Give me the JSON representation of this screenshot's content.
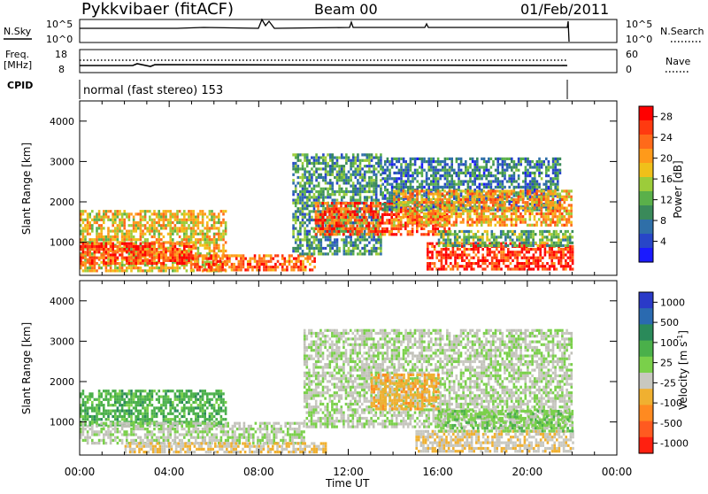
{
  "header": {
    "site": "Pykkvibaer (fitACF)",
    "beam": "Beam 00",
    "date": "01/Feb/2011"
  },
  "noise_panel": {
    "left_label": "N.Sky",
    "right_label": "N.Search",
    "left_ticks": [
      "10^5",
      "10^0"
    ],
    "right_ticks": [
      "10^5",
      "10^0"
    ]
  },
  "freq_panel": {
    "left_label_1": "Freq.",
    "left_label_2": "[MHz]",
    "right_label": "Nave",
    "left_ticks": [
      "18",
      "8"
    ],
    "right_ticks": [
      "60",
      "0"
    ]
  },
  "cpid": {
    "label": "CPID",
    "text": "normal (fast stereo) 153"
  },
  "colors": {
    "power_scale": [
      "#1a1aff",
      "#2846c8",
      "#2f6fa8",
      "#3a8a5a",
      "#5ab04a",
      "#9ccc3a",
      "#f0c01a",
      "#ff9a1a",
      "#ff6a1a",
      "#ff3a10",
      "#ff0000"
    ],
    "velocity_scale": [
      "#2a3ac8",
      "#2a6ab0",
      "#2a8a5a",
      "#4ab04a",
      "#7ad04a",
      "#c8c8c0",
      "#f0b030",
      "#ff8a20",
      "#ff5a20",
      "#ff2010"
    ],
    "ground_scatter": "#c0c0b8"
  },
  "chart_data": [
    {
      "type": "heatmap",
      "title": "",
      "xlabel": "",
      "ylabel": "Slant Range [km]",
      "x_tick_labels": [
        "00:00",
        "04:00",
        "08:00",
        "12:00",
        "16:00",
        "20:00",
        "00:00"
      ],
      "x_range_hours": [
        0,
        24
      ],
      "y_tick_labels": [
        "1000",
        "2000",
        "3000",
        "4000"
      ],
      "y_range_km": [
        180,
        4500
      ],
      "colorbar_label": "Power [dB]",
      "colorbar_ticks": [
        "4",
        "8",
        "12",
        "16",
        "20",
        "24",
        "28"
      ],
      "colorbar_range": [
        0,
        30
      ],
      "regions": [
        {
          "t0": 0.0,
          "t1": 6.5,
          "r0": 300,
          "r1": 1800,
          "level": 18
        },
        {
          "t0": 0.0,
          "t1": 5.0,
          "r0": 500,
          "r1": 1000,
          "level": 26
        },
        {
          "t0": 5.0,
          "t1": 10.5,
          "r0": 280,
          "r1": 700,
          "level": 24
        },
        {
          "t0": 9.5,
          "t1": 13.5,
          "r0": 700,
          "r1": 3200,
          "level": 10
        },
        {
          "t0": 10.5,
          "t1": 16.5,
          "r0": 1200,
          "r1": 2000,
          "level": 25
        },
        {
          "t0": 13.5,
          "t1": 21.5,
          "r0": 1800,
          "r1": 3100,
          "level": 8
        },
        {
          "t0": 14.0,
          "t1": 22.0,
          "r0": 1400,
          "r1": 2300,
          "level": 20
        },
        {
          "t0": 15.5,
          "t1": 22.0,
          "r0": 300,
          "r1": 1000,
          "level": 27
        },
        {
          "t0": 16.0,
          "t1": 22.0,
          "r0": 900,
          "r1": 1300,
          "level": 12
        }
      ]
    },
    {
      "type": "heatmap",
      "title": "",
      "xlabel": "Time UT",
      "ylabel": "Slant Range [km]",
      "x_tick_labels": [
        "00:00",
        "04:00",
        "08:00",
        "12:00",
        "16:00",
        "20:00",
        "00:00"
      ],
      "x_range_hours": [
        0,
        24
      ],
      "y_tick_labels": [
        "1000",
        "2000",
        "3000",
        "4000"
      ],
      "y_range_km": [
        180,
        4500
      ],
      "colorbar_label": "Velocity [m s^-1]",
      "colorbar_ticks": [
        "1000",
        "500",
        "100",
        "25",
        "-25",
        "-100",
        "-500",
        "-1000"
      ],
      "colorbar_range": [
        -1000,
        1000
      ],
      "regions": [
        {
          "t0": 0.0,
          "t1": 6.5,
          "r0": 900,
          "r1": 1800,
          "level": 300
        },
        {
          "t0": 0.0,
          "t1": 10.0,
          "r0": 500,
          "r1": 1000,
          "level": 0
        },
        {
          "t0": 2.0,
          "t1": 11.0,
          "r0": 250,
          "r1": 500,
          "level": -200
        },
        {
          "t0": 10.0,
          "t1": 22.0,
          "r0": 900,
          "r1": 3300,
          "level": 0
        },
        {
          "t0": 13.0,
          "t1": 16.0,
          "r0": 1300,
          "r1": 2200,
          "level": -300
        },
        {
          "t0": 15.0,
          "t1": 22.0,
          "r0": 300,
          "r1": 800,
          "level": -150
        },
        {
          "t0": 16.0,
          "t1": 22.0,
          "r0": 800,
          "r1": 1300,
          "level": 120
        }
      ]
    }
  ]
}
